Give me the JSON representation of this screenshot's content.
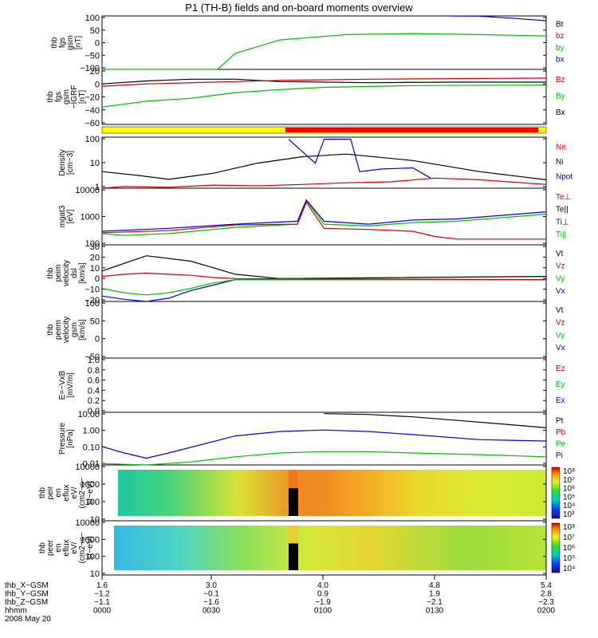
{
  "title": "P1 (TH-B) fields and on-board moments overview",
  "panels": [
    {
      "key": "fgs_dsl",
      "ylabel": [
        "thb",
        "fgs",
        "gsm",
        "[nT]"
      ],
      "ticks": [
        "100",
        "50",
        "0",
        "−50",
        "−100"
      ],
      "legend": [
        {
          "t": "Bt",
          "c": "#000000"
        },
        {
          "t": "bz",
          "c": "#cc0000"
        },
        {
          "t": "by",
          "c": "#00bb00"
        },
        {
          "t": "bx",
          "c": "#0000cc"
        }
      ]
    },
    {
      "key": "fgs_gsm",
      "ylabel": [
        "thb",
        "fgs",
        "gsm",
        "−IGRF",
        "[nT]"
      ],
      "ticks": [
        "20",
        "0",
        "−20",
        "−40",
        "−60"
      ],
      "legend": [
        {
          "t": "Bz",
          "c": "#cc0000"
        },
        {
          "t": "By",
          "c": "#00bb00"
        },
        {
          "t": "Bx",
          "c": "#000000"
        }
      ]
    },
    {
      "key": "density",
      "ylabel": [
        "Density",
        "[cm−3]"
      ],
      "ticks": [
        "100",
        "10",
        "1"
      ],
      "legend": [
        {
          "t": "Ne",
          "c": "#cc0000"
        },
        {
          "t": "Ni",
          "c": "#000000"
        },
        {
          "t": "Npot",
          "c": "#0000cc"
        }
      ]
    },
    {
      "key": "temp",
      "ylabel": [
        "mgat3",
        "[eV]"
      ],
      "ticks": [
        "10000",
        "1000",
        "100"
      ],
      "legend": [
        {
          "t": "Te⊥",
          "c": "#cc0000"
        },
        {
          "t": "Te||",
          "c": "#000000"
        },
        {
          "t": "Ti⊥",
          "c": "#0000cc"
        },
        {
          "t": "Ti||",
          "c": "#00bb00"
        }
      ]
    },
    {
      "key": "peim_vel",
      "ylabel": [
        "thb",
        "peim",
        "velocity",
        "dsl",
        "[km/s]"
      ],
      "ticks": [
        "30",
        "20",
        "10",
        "0",
        "−10",
        "−20"
      ],
      "legend": [
        {
          "t": "Vt",
          "c": "#000000"
        },
        {
          "t": "Vz",
          "c": "#cc0000"
        },
        {
          "t": "Vy",
          "c": "#00bb00"
        },
        {
          "t": "Vx",
          "c": "#0000cc"
        }
      ]
    },
    {
      "key": "peem_vel",
      "ylabel": [
        "thb",
        "peem",
        "velocity",
        "gsm",
        "[km/s]"
      ],
      "ticks": [
        "100",
        "50",
        "0",
        "−50"
      ],
      "legend": [
        {
          "t": "Vt",
          "c": "#000000"
        },
        {
          "t": "Vz",
          "c": "#cc0000"
        },
        {
          "t": "Vy",
          "c": "#00bb00"
        },
        {
          "t": "Vx",
          "c": "#0000cc"
        }
      ]
    },
    {
      "key": "efield",
      "ylabel": [
        "E=−VxB",
        "[mV/m]"
      ],
      "ticks": [
        "1.0",
        "0.8",
        "0.6",
        "0.4",
        "0.2",
        "0.0"
      ],
      "legend": [
        {
          "t": "Ez",
          "c": "#cc0000"
        },
        {
          "t": "Ey",
          "c": "#00bb00"
        },
        {
          "t": "Ex",
          "c": "#0000cc"
        }
      ]
    },
    {
      "key": "pressure",
      "ylabel": [
        "Pressure",
        "[nPa]"
      ],
      "ticks": [
        "10.00",
        "1.00",
        "0.10",
        "0.01"
      ],
      "legend": [
        {
          "t": "Pt",
          "c": "#000000"
        },
        {
          "t": "Pb",
          "c": "#cc0000"
        },
        {
          "t": "Pe",
          "c": "#00bb00"
        },
        {
          "t": "Pi",
          "c": "#0000cc"
        }
      ]
    },
    {
      "key": "peir",
      "ylabel": [
        "thb",
        "peir",
        "en",
        "eflux",
        "eV/",
        "(cm2−s−",
        "sr−eV)"
      ],
      "ticks": [
        "10000",
        "1000",
        "100",
        "10"
      ],
      "cbar": [
        "10⁸",
        "10⁷",
        "10⁶",
        "10⁵",
        "10⁴",
        "10³"
      ]
    },
    {
      "key": "peer",
      "ylabel": [
        "thb",
        "peer",
        "en",
        "eflux",
        "eV/",
        "(cm2−s−",
        "sr−eV)"
      ],
      "ticks": [
        "10000",
        "1000",
        "100",
        "10"
      ],
      "cbar": [
        "10⁸",
        "10⁷",
        "10⁶",
        "10⁵",
        "10⁴"
      ]
    }
  ],
  "xaxis": {
    "row_labels": [
      "thb_X−GSM",
      "thb_Y−GSM",
      "thb_Z−GSM",
      "hhmm",
      "2008 May 20"
    ],
    "columns": [
      [
        "1.6",
        "−1.2",
        "−1.1",
        "0000"
      ],
      [
        "3.0",
        "−0.1",
        "−1.6",
        "0030"
      ],
      [
        "4.0",
        "0.9",
        "−1.9",
        "0100"
      ],
      [
        "4.8",
        "1.9",
        "−2.1",
        "0130"
      ],
      [
        "5.4",
        "2.8",
        "−2.3",
        "0200"
      ]
    ]
  },
  "chart_data": {
    "type": "line",
    "title": "P1 (TH-B) fields and on-board moments overview",
    "date": "2008 May 20",
    "time_range_hhmm": [
      "0000",
      "0200"
    ],
    "series": [
      {
        "panel": "fgs_dsl",
        "name": "by",
        "x": [
          0.0,
          0.26,
          0.3,
          0.4,
          0.55,
          0.7,
          0.85,
          1.0
        ],
        "y": [
          -100,
          -100,
          -40,
          10,
          30,
          34,
          30,
          25
        ]
      },
      {
        "panel": "fgs_dsl",
        "name": "bx",
        "x": [
          0.78,
          0.85,
          0.92,
          1.0
        ],
        "y": [
          100,
          99,
          92,
          82
        ]
      },
      {
        "panel": "fgs_gsm",
        "name": "Bx",
        "x": [
          0.0,
          0.1,
          0.2,
          0.3,
          0.4,
          0.6,
          0.8,
          1.0
        ],
        "y": [
          0,
          5,
          8,
          8,
          4,
          2,
          3,
          3
        ]
      },
      {
        "panel": "fgs_gsm",
        "name": "Bz",
        "x": [
          0.0,
          0.1,
          0.3,
          0.4,
          0.6,
          0.8,
          1.0
        ],
        "y": [
          -4,
          0,
          4,
          6,
          8,
          9,
          10
        ]
      },
      {
        "panel": "fgs_gsm",
        "name": "By",
        "x": [
          0.0,
          0.1,
          0.2,
          0.3,
          0.4,
          0.5,
          0.7,
          1.0
        ],
        "y": [
          -40,
          -30,
          -25,
          -15,
          -10,
          -6,
          -3,
          -2
        ]
      },
      {
        "panel": "density",
        "name": "Ni",
        "x": [
          0.0,
          0.08,
          0.15,
          0.25,
          0.35,
          0.45,
          0.55,
          0.7,
          0.85,
          1.0
        ],
        "y": [
          6,
          4,
          2.6,
          5,
          15,
          30,
          40,
          20,
          6,
          2.5
        ]
      },
      {
        "panel": "density",
        "name": "Ne",
        "x": [
          0.0,
          0.05,
          0.15,
          0.25,
          0.35,
          0.45,
          0.55,
          0.65,
          0.75,
          0.85,
          1.0
        ],
        "y": [
          1,
          1.2,
          1.1,
          1.4,
          1.3,
          1.5,
          1.8,
          2,
          3,
          2.5,
          1.5
        ]
      },
      {
        "panel": "density",
        "name": "Npot",
        "x": [
          0.42,
          0.48,
          0.5,
          0.52,
          0.56,
          0.58,
          0.63,
          0.7,
          0.74
        ],
        "y": [
          200,
          15,
          200,
          200,
          200,
          6,
          8,
          9,
          3
        ]
      },
      {
        "panel": "temp",
        "name": "Ti||",
        "x": [
          0.0,
          0.05,
          0.15,
          0.3,
          0.44,
          0.46,
          0.5,
          0.6,
          0.7,
          0.8,
          1.0
        ],
        "y": [
          120,
          100,
          120,
          220,
          300,
          3000,
          300,
          250,
          350,
          400,
          800
        ]
      },
      {
        "panel": "temp",
        "name": "Ti⊥",
        "x": [
          0.0,
          0.15,
          0.3,
          0.44,
          0.46,
          0.5,
          0.6,
          0.7,
          0.8,
          1.0
        ],
        "y": [
          150,
          200,
          300,
          400,
          3200,
          400,
          300,
          450,
          500,
          1000
        ]
      },
      {
        "panel": "temp",
        "name": "Te⊥",
        "x": [
          0.0,
          0.15,
          0.3,
          0.44,
          0.46,
          0.5,
          0.6,
          0.7,
          0.75,
          0.8,
          1.0
        ],
        "y": [
          130,
          160,
          280,
          300,
          2500,
          200,
          180,
          150,
          90,
          70,
          70
        ]
      },
      {
        "panel": "peim_vel",
        "name": "Vt",
        "x": [
          0.0,
          0.05,
          0.1,
          0.2,
          0.3,
          0.4,
          1.0
        ],
        "y": [
          8,
          15,
          22,
          17,
          5,
          1,
          3
        ]
      },
      {
        "panel": "peim_vel",
        "name": "Vx",
        "x": [
          0.0,
          0.05,
          0.1,
          0.15,
          0.2,
          0.25,
          0.3,
          1.0
        ],
        "y": [
          -15,
          -18,
          -20,
          -17,
          -10,
          -5,
          0,
          0
        ]
      },
      {
        "panel": "peim_vel",
        "name": "Vy",
        "x": [
          0.0,
          0.05,
          0.1,
          0.15,
          0.2,
          0.25,
          0.3,
          1.0
        ],
        "y": [
          -8,
          -12,
          -14,
          -12,
          -8,
          -3,
          0,
          0
        ]
      },
      {
        "panel": "peim_vel",
        "name": "Vz",
        "x": [
          0.0,
          0.05,
          0.1,
          0.15,
          0.2,
          0.25,
          0.3,
          1.0
        ],
        "y": [
          3,
          5,
          6,
          5,
          4,
          2,
          1,
          0
        ]
      },
      {
        "panel": "pressure",
        "name": "Pi",
        "x": [
          0.0,
          0.05,
          0.1,
          0.15,
          0.3,
          0.4,
          0.5,
          0.6,
          0.7,
          0.85,
          1.0
        ],
        "y": [
          0.12,
          0.05,
          0.025,
          0.05,
          0.5,
          0.9,
          1.1,
          0.9,
          0.6,
          0.3,
          0.25
        ]
      },
      {
        "panel": "pressure",
        "name": "Pe",
        "x": [
          0.0,
          0.1,
          0.2,
          0.3,
          0.4,
          0.5,
          0.6,
          0.7,
          0.85,
          1.0
        ],
        "y": [
          0.012,
          0.01,
          0.015,
          0.03,
          0.05,
          0.06,
          0.06,
          0.05,
          0.04,
          0.03
        ]
      },
      {
        "panel": "pressure",
        "name": "Pt",
        "x": [
          0.5,
          0.6,
          0.7,
          0.8,
          0.9,
          1.0
        ],
        "y": [
          10,
          9,
          6.5,
          4,
          2.5,
          1.5
        ]
      }
    ]
  }
}
